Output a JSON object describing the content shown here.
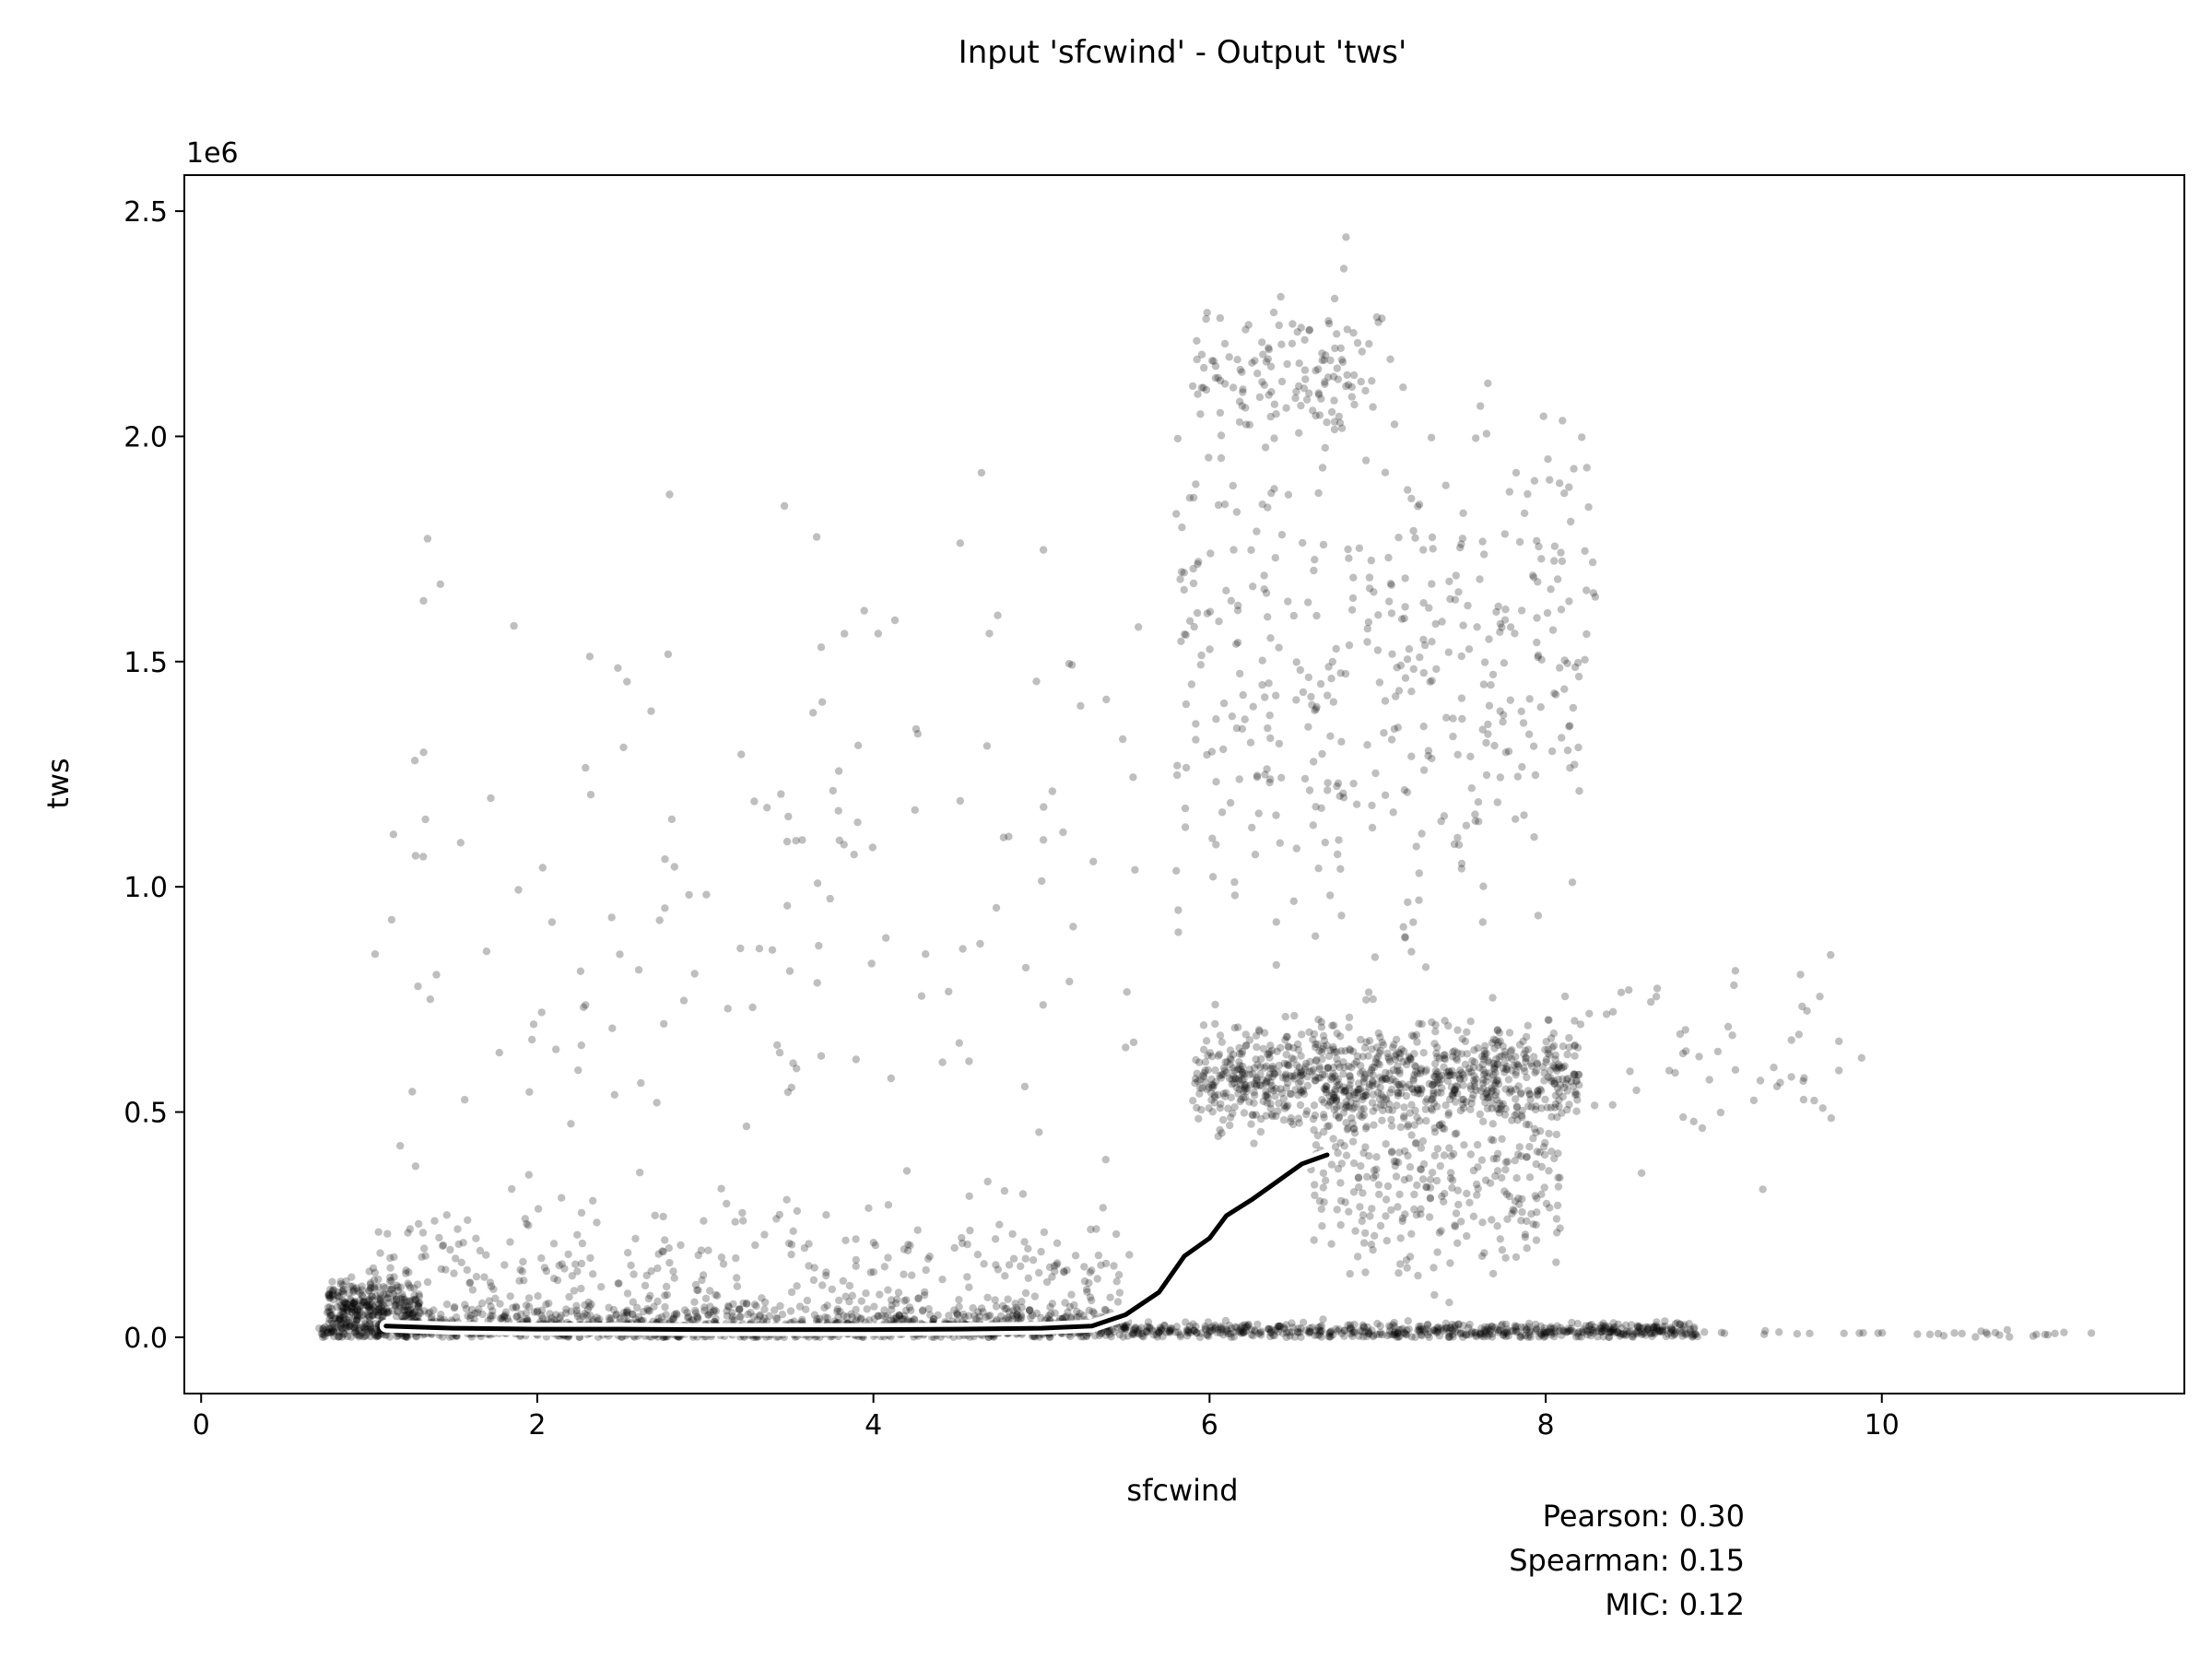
{
  "chart_data": {
    "type": "scatter",
    "title": "Input 'sfcwind' - Output 'tws'",
    "xlabel": "sfcwind",
    "ylabel": "tws",
    "y_offset_label": "1e6",
    "xlim": [
      -0.1,
      11.8
    ],
    "ylim": [
      -125000,
      2580000
    ],
    "x_ticks": [
      0,
      2,
      4,
      6,
      8,
      10
    ],
    "x_tick_labels": [
      "0",
      "2",
      "4",
      "6",
      "8",
      "10"
    ],
    "y_ticks": [
      0,
      500000,
      1000000,
      1500000,
      2000000,
      2500000
    ],
    "y_tick_labels": [
      "0.0",
      "0.5",
      "1.0",
      "1.5",
      "2.0",
      "2.5"
    ],
    "grid": false,
    "point_color": "#000000",
    "point_opacity": 0.25,
    "trend_line": {
      "x": [
        1.1,
        1.5,
        2.0,
        2.5,
        3.0,
        3.5,
        4.0,
        4.5,
        5.0,
        5.3,
        5.5,
        5.7,
        5.85,
        6.0,
        6.1,
        6.25,
        6.4,
        6.55,
        6.7
      ],
      "y": [
        25000,
        20000,
        18000,
        18000,
        17000,
        17000,
        17000,
        18000,
        20000,
        25000,
        50000,
        100000,
        180000,
        220000,
        270000,
        305000,
        345000,
        385000,
        405000
      ]
    },
    "scatter_clusters": [
      {
        "x_range": [
          0.7,
          8.9
        ],
        "y_center": 15000,
        "y_spread": 15000,
        "n": 1400
      },
      {
        "x_range": [
          0.75,
          1.3
        ],
        "y_center": 60000,
        "y_spread": 55000,
        "n": 350
      },
      {
        "x_range": [
          1.2,
          5.5
        ],
        "y_center": 40000,
        "y_spread": 35000,
        "n": 600
      },
      {
        "x_range": [
          1.0,
          5.5
        ],
        "y_center": 150000,
        "y_spread": 120000,
        "n": 300
      },
      {
        "x_range": [
          5.9,
          8.2
        ],
        "y_center": 580000,
        "y_spread": 90000,
        "n": 900
      },
      {
        "x_range": [
          6.6,
          8.1
        ],
        "y_center": 350000,
        "y_spread": 180000,
        "n": 300
      },
      {
        "x_range": [
          5.8,
          8.3
        ],
        "y_center": 1500000,
        "y_spread": 550000,
        "n": 450
      },
      {
        "x_range": [
          5.9,
          7.0
        ],
        "y_center": 2150000,
        "y_spread": 120000,
        "n": 120
      },
      {
        "x_range": [
          1.0,
          5.6
        ],
        "y_center": 1000000,
        "y_spread": 700000,
        "n": 170
      },
      {
        "x_range": [
          8.0,
          9.9
        ],
        "y_center": 600000,
        "y_spread": 200000,
        "n": 60
      },
      {
        "x_range": [
          8.8,
          11.3
        ],
        "y_center": 8000,
        "y_spread": 6000,
        "n": 40
      }
    ],
    "annotations": [
      "Pearson: 0.30",
      "Spearman: 0.15",
      "MIC: 0.12"
    ]
  }
}
